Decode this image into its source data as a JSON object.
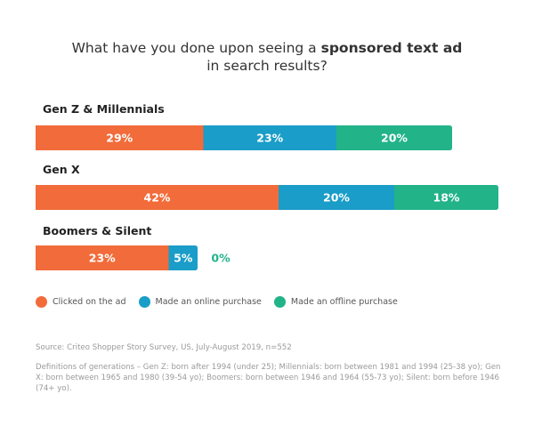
{
  "title": {
    "prefix": "What have you done upon seeing a ",
    "bold": "sponsored text ad",
    "line2": "in search results?"
  },
  "colors": {
    "clicked": "#F26B3A",
    "online": "#1A9DC8",
    "offline": "#22B389",
    "zero_label": "#22B389"
  },
  "chart_data": {
    "type": "bar",
    "orientation": "horizontal",
    "stacked": true,
    "title": "What have you done upon seeing a sponsored text ad in search results?",
    "categories": [
      "Gen Z & Millennials",
      "Gen X",
      "Boomers & Silent"
    ],
    "series": [
      {
        "name": "Clicked on the ad",
        "values": [
          29,
          42,
          23
        ],
        "labels": [
          "29%",
          "42%",
          "23%"
        ]
      },
      {
        "name": "Made an online purchase",
        "values": [
          23,
          20,
          5
        ],
        "labels": [
          "23%",
          "20%",
          "5%"
        ]
      },
      {
        "name": "Made an offline purchase",
        "values": [
          20,
          18,
          0
        ],
        "labels": [
          "20%",
          "18%",
          "0%"
        ]
      }
    ],
    "unit": "%",
    "legend_position": "bottom-left",
    "grid": false
  },
  "legend": [
    {
      "label": "Clicked on the ad",
      "icon": "orange-dot-icon"
    },
    {
      "label": "Made an online purchase",
      "icon": "blue-dot-icon"
    },
    {
      "label": "Made an offline purchase",
      "icon": "green-dot-icon"
    }
  ],
  "source": "Source: Criteo Shopper Story Survey, US, July-August 2019, n=552",
  "definitions": "Definitions of generations – Gen Z: born after 1994 (under 25); Millennials: born between 1981 and 1994 (25-38 yo); Gen X: born between 1965 and 1980 (39-54 yo); Boomers: born between 1946 and 1964 (55-73 yo); Silent: born before 1946 (74+ yo)."
}
